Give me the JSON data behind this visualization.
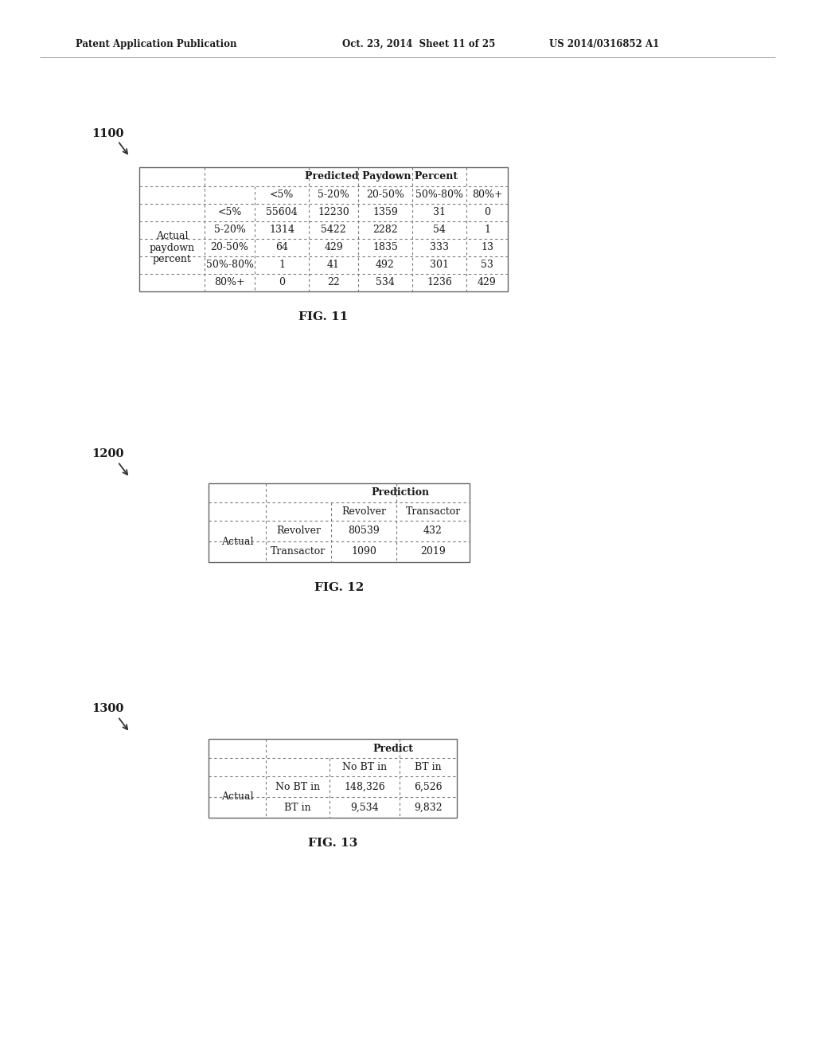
{
  "page_header_left": "Patent Application Publication",
  "page_header_mid": "Oct. 23, 2014  Sheet 11 of 25",
  "page_header_right": "US 2014/0316852 A1",
  "fig11_label": "1100",
  "fig12_label": "1200",
  "fig13_label": "1300",
  "fig11_title": "FIG. 11",
  "fig12_title": "FIG. 12",
  "fig13_title": "FIG. 13",
  "table1": {
    "col_header_span": "Predicted Paydown Percent",
    "col_headers": [
      "<5%",
      "5-20%",
      "20-50%",
      "50%-80%",
      "80%+"
    ],
    "row_label_span": "Actual\npaydown\npercent",
    "row_headers": [
      "<5%",
      "5-20%",
      "20-50%",
      "50%-80%",
      "80%+"
    ],
    "data": [
      [
        "55604",
        "12230",
        "1359",
        "31",
        "0"
      ],
      [
        "1314",
        "5422",
        "2282",
        "54",
        "1"
      ],
      [
        "64",
        "429",
        "1835",
        "333",
        "13"
      ],
      [
        "1",
        "41",
        "492",
        "301",
        "53"
      ],
      [
        "0",
        "22",
        "534",
        "1236",
        "429"
      ]
    ]
  },
  "table2": {
    "col_header_span": "Prediction",
    "col_headers": [
      "Revolver",
      "Transactor"
    ],
    "row_label_span": "Actual",
    "row_headers": [
      "Revolver",
      "Transactor"
    ],
    "data": [
      [
        "80539",
        "432"
      ],
      [
        "1090",
        "2019"
      ]
    ]
  },
  "table3": {
    "col_header_span": "Predict",
    "col_headers": [
      "No BT in",
      "BT in"
    ],
    "row_label_span": "Actual",
    "row_headers": [
      "No BT in",
      "BT in"
    ],
    "data": [
      [
        "148,326",
        "6,526"
      ],
      [
        "9,534",
        "9,832"
      ]
    ]
  },
  "bg_color": "#ffffff",
  "text_color": "#1a1a1a",
  "border_color": "#777777"
}
